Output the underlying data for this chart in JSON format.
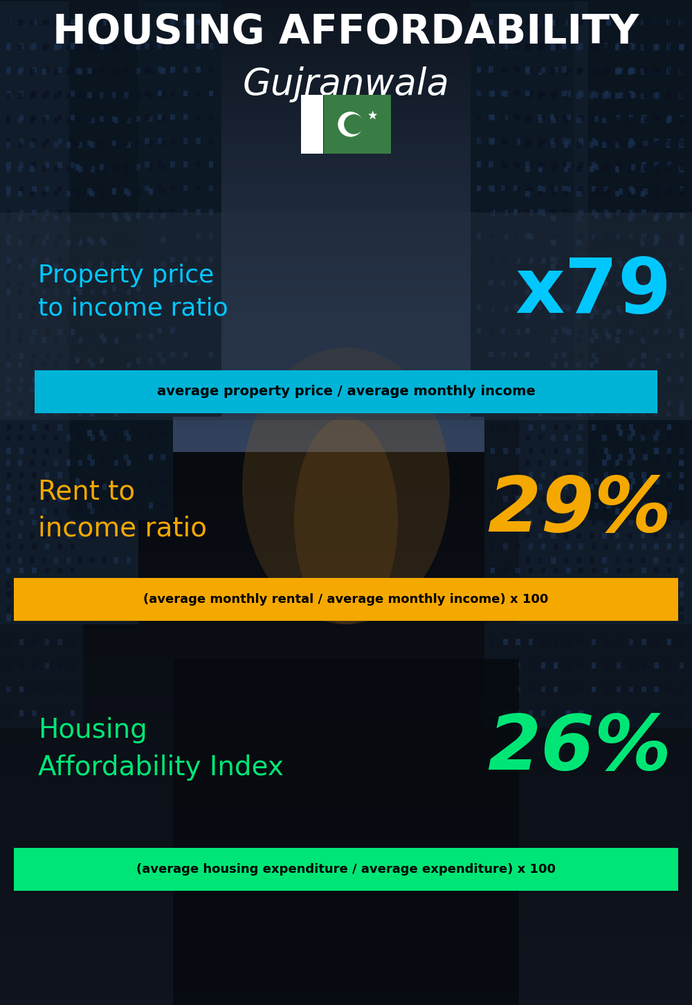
{
  "title_line1": "HOUSING AFFORDABILITY",
  "title_line2": "Gujranwala",
  "bg_color": "#080c14",
  "title_color": "#ffffff",
  "section1_label": "Property price\nto income ratio",
  "section1_value": "x79",
  "section1_label_color": "#00c8ff",
  "section1_value_color": "#00c8ff",
  "section1_formula": "average property price / average monthly income",
  "section1_formula_bg": "#00b4d8",
  "section1_formula_color": "#000000",
  "section1_panel_color": "#1a2535",
  "section2_label": "Rent to\nincome ratio",
  "section2_value": "29%",
  "section2_label_color": "#f5a800",
  "section2_value_color": "#f5a800",
  "section2_formula": "(average monthly rental / average monthly income) x 100",
  "section2_formula_bg": "#f5a800",
  "section2_formula_color": "#000000",
  "section3_label": "Housing\nAffordability Index",
  "section3_value": "26%",
  "section3_label_color": "#00e676",
  "section3_value_color": "#00e676",
  "section3_formula": "(average housing expenditure / average expenditure) x 100",
  "section3_formula_bg": "#00e676",
  "section3_formula_color": "#000000",
  "flag_green": "#3a7d44",
  "flag_white": "#ffffff"
}
